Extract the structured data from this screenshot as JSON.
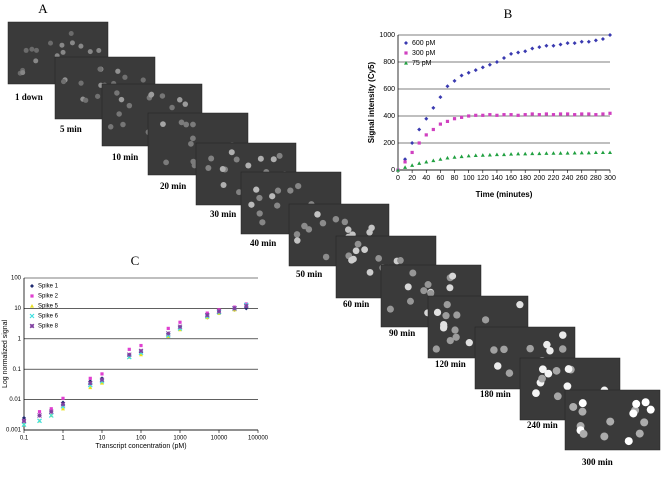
{
  "panel_a": {
    "label": "A",
    "captions": [
      "1 down",
      "5 min",
      "10 min",
      "20 min",
      "30 min",
      "40 min",
      "50 min",
      "60 min",
      "90 min",
      "120 min",
      "180 min",
      "240 min",
      "300 min"
    ]
  },
  "chart_data": [
    {
      "type": "scatter",
      "label": "B",
      "ylabel": "Signal intensity (Cy5)",
      "xlabel": "Time (minutes)",
      "x": [
        0,
        10,
        20,
        30,
        40,
        50,
        60,
        70,
        80,
        90,
        100,
        110,
        120,
        130,
        140,
        150,
        160,
        170,
        180,
        190,
        200,
        210,
        220,
        230,
        240,
        250,
        260,
        270,
        280,
        290,
        300
      ],
      "series": [
        {
          "name": "600 pM",
          "color": "#3a3ab0",
          "marker": "diamond",
          "values": [
            0,
            80,
            200,
            300,
            380,
            460,
            540,
            620,
            660,
            700,
            720,
            740,
            760,
            780,
            800,
            830,
            860,
            870,
            880,
            900,
            910,
            920,
            920,
            930,
            940,
            940,
            950,
            950,
            960,
            970,
            1000
          ]
        },
        {
          "name": "300 pM",
          "color": "#d040c0",
          "marker": "square",
          "values": [
            0,
            60,
            130,
            200,
            260,
            300,
            340,
            360,
            380,
            390,
            400,
            405,
            405,
            410,
            405,
            410,
            410,
            405,
            410,
            415,
            410,
            415,
            410,
            415,
            415,
            410,
            415,
            415,
            410,
            415,
            420
          ]
        },
        {
          "name": "75 pM",
          "color": "#20a040",
          "marker": "triangle",
          "values": [
            0,
            20,
            35,
            50,
            60,
            70,
            80,
            90,
            95,
            100,
            105,
            108,
            110,
            112,
            115,
            115,
            118,
            120,
            120,
            122,
            122,
            124,
            125,
            125,
            126,
            127,
            128,
            128,
            130,
            130,
            130
          ]
        }
      ],
      "xlim": [
        0,
        300
      ],
      "xticks": [
        0,
        20,
        40,
        60,
        80,
        100,
        120,
        140,
        160,
        180,
        200,
        220,
        240,
        260,
        280,
        300
      ],
      "ylim": [
        0,
        1000
      ],
      "yticks": [
        0,
        200,
        400,
        600,
        800,
        1000
      ],
      "grid": true,
      "legend": "top-left"
    },
    {
      "type": "scatter",
      "label": "C",
      "ylabel": "Log normalized signal",
      "xlabel": "Transcript concentration (pM)",
      "x": [
        0.1,
        0.25,
        0.5,
        1,
        5,
        10,
        50,
        100,
        500,
        1000,
        5000,
        10000,
        25000,
        50000
      ],
      "series": [
        {
          "name": "Spike 1",
          "color": "#1f2a70",
          "marker": "diamond",
          "values": [
            0.0025,
            0.003,
            0.004,
            0.008,
            0.04,
            0.05,
            0.3,
            0.35,
            1.5,
            2.5,
            5,
            7,
            9,
            10
          ]
        },
        {
          "name": "Spike 2",
          "color": "#e040d0",
          "marker": "square",
          "values": [
            0.002,
            0.004,
            0.005,
            0.011,
            0.05,
            0.07,
            0.45,
            0.6,
            2.2,
            3.5,
            7,
            9,
            11,
            14
          ]
        },
        {
          "name": "Spike 5",
          "color": "#e8e020",
          "marker": "triangle",
          "values": [
            0.0015,
            0.002,
            0.003,
            0.005,
            0.025,
            0.035,
            0.25,
            0.3,
            1.2,
            2,
            5,
            7,
            9,
            12
          ]
        },
        {
          "name": "Spike 6",
          "color": "#40e0e0",
          "marker": "cross",
          "values": [
            0.0015,
            0.002,
            0.003,
            0.006,
            0.03,
            0.04,
            0.25,
            0.35,
            1.3,
            2.2,
            5.5,
            7.5,
            10,
            13
          ]
        },
        {
          "name": "Spike 8",
          "color": "#8040a0",
          "marker": "star",
          "values": [
            0.002,
            0.003,
            0.004,
            0.007,
            0.035,
            0.045,
            0.3,
            0.4,
            1.5,
            2.5,
            6,
            8,
            10,
            12
          ]
        }
      ],
      "xscale": "log",
      "yscale": "log",
      "xlim": [
        0.1,
        100000
      ],
      "xticks": [
        0.1,
        1,
        10,
        100,
        1000,
        10000,
        100000
      ],
      "ylim": [
        0.001,
        100
      ],
      "yticks": [
        0.001,
        0.01,
        0.1,
        1,
        10,
        100
      ],
      "grid": true,
      "legend": "top-left"
    }
  ]
}
